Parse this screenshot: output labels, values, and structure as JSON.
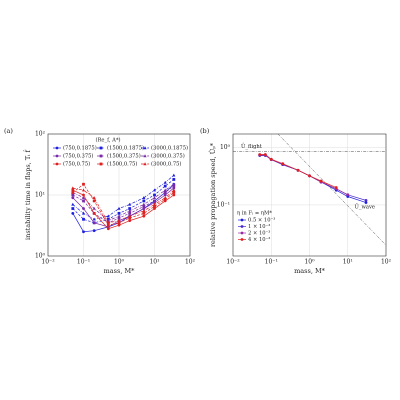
{
  "chart_data": [
    {
      "type": "line",
      "panel": "(a)",
      "xlabel": "mass, M*",
      "ylabel": "instability time in flaps, Tᵢ f̂",
      "xscale": "log",
      "yscale": "log",
      "grid": true,
      "xlim": [
        0.01,
        100
      ],
      "ylim": [
        1,
        100
      ],
      "xticks": [
        {
          "value": 0.01,
          "label": "10⁻²"
        },
        {
          "value": 0.1,
          "label": "10⁻¹"
        },
        {
          "value": 1,
          "label": "10⁰"
        },
        {
          "value": 10,
          "label": "10¹"
        },
        {
          "value": 100,
          "label": "10²"
        }
      ],
      "yticks": [
        {
          "value": 1,
          "label": "10⁰"
        },
        {
          "value": 10,
          "label": "10¹"
        },
        {
          "value": 100,
          "label": "10²"
        }
      ],
      "legend_title": "(Re_f, A*)",
      "x": [
        0.05,
        0.1,
        0.2,
        0.5,
        1,
        2,
        5,
        10,
        20,
        35
      ],
      "series": [
        {
          "name": "(750,0.1875)",
          "color": "#1f1fe0",
          "marker": "circle",
          "linestyle": "solid",
          "values": [
            5,
            2.5,
            2.6,
            3,
            3.5,
            4.5,
            6,
            8,
            11,
            15
          ]
        },
        {
          "name": "(1500,0.1875)",
          "color": "#1f1fe0",
          "marker": "square",
          "linestyle": "dashed",
          "values": [
            6,
            4,
            3.5,
            4,
            5,
            6,
            8,
            10,
            14,
            18
          ]
        },
        {
          "name": "(3000,0.1875)",
          "color": "#1f1fe0",
          "marker": "triangle",
          "linestyle": "dashdot",
          "values": [
            7,
            5,
            4,
            4.5,
            6,
            7,
            9,
            12,
            16,
            21
          ]
        },
        {
          "name": "(750,0.375)",
          "color": "#7a2aa8",
          "marker": "circle",
          "linestyle": "solid",
          "values": [
            9,
            6,
            3.5,
            3,
            3.8,
            4.5,
            6,
            7.5,
            10,
            13
          ]
        },
        {
          "name": "(1500,0.375)",
          "color": "#7a2aa8",
          "marker": "square",
          "linestyle": "dashed",
          "values": [
            10,
            8,
            5,
            3.5,
            4.2,
            5,
            6.5,
            8,
            11,
            14
          ]
        },
        {
          "name": "(3000,0.375)",
          "color": "#7a2aa8",
          "marker": "triangle",
          "linestyle": "dashdot",
          "values": [
            11,
            9,
            6,
            3.8,
            4.5,
            5.5,
            7,
            9,
            12,
            15
          ]
        },
        {
          "name": "(750,0.75)",
          "color": "#e02020",
          "marker": "circle",
          "linestyle": "solid",
          "values": [
            12,
            10,
            5,
            2.8,
            3.2,
            3.8,
            4.5,
            6,
            8,
            10
          ]
        },
        {
          "name": "(1500,0.75)",
          "color": "#e02020",
          "marker": "square",
          "linestyle": "dashed",
          "values": [
            11,
            15,
            8,
            3.2,
            3.5,
            4.2,
            5,
            6.5,
            8.5,
            11
          ]
        },
        {
          "name": "(3000,0.75)",
          "color": "#e02020",
          "marker": "triangle",
          "linestyle": "dashdot",
          "values": [
            13,
            12,
            9,
            3.5,
            3.8,
            4.5,
            5.5,
            7,
            9,
            12
          ]
        }
      ]
    },
    {
      "type": "line",
      "panel": "(b)",
      "xlabel": "mass, M*",
      "ylabel": "relative propagation speed, Ûₚ*",
      "xscale": "log",
      "yscale": "log",
      "grid": true,
      "xlim": [
        0.01,
        100
      ],
      "ylim": [
        0.013,
        1.7
      ],
      "xticks": [
        {
          "value": 0.01,
          "label": "10⁻²"
        },
        {
          "value": 0.1,
          "label": "10⁻¹"
        },
        {
          "value": 1,
          "label": "10⁰"
        },
        {
          "value": 10,
          "label": "10¹"
        },
        {
          "value": 100,
          "label": "10²"
        }
      ],
      "yticks": [
        {
          "value": 0.1,
          "label": "10⁻¹"
        },
        {
          "value": 1,
          "label": "10⁰"
        }
      ],
      "legend_title": "η in Fₗ = ηM*",
      "x": [
        0.05,
        0.07,
        0.1,
        0.2,
        0.5,
        1,
        2,
        5,
        10,
        30
      ],
      "series": [
        {
          "name": "0.5 × 10⁻³",
          "color": "#1f1fe0",
          "marker": "circle",
          "linestyle": "solid",
          "values": [
            0.72,
            0.72,
            0.62,
            0.5,
            0.4,
            0.32,
            0.25,
            0.18,
            0.14,
            0.11
          ]
        },
        {
          "name": "1 × 10⁻³",
          "color": "#4a2ad0",
          "marker": "circle",
          "linestyle": "solid",
          "values": [
            0.73,
            0.73,
            0.61,
            0.5,
            0.4,
            0.32,
            0.25,
            0.19,
            0.15,
            0.12
          ]
        },
        {
          "name": "2 × 10⁻³",
          "color": "#9a2aa0",
          "marker": "circle",
          "linestyle": "solid",
          "values": [
            0.74,
            0.74,
            0.61,
            0.51,
            0.4,
            0.32,
            0.25,
            0.19,
            0.15,
            null
          ]
        },
        {
          "name": "4 × 10⁻³",
          "color": "#e02020",
          "marker": "circle",
          "linestyle": "solid",
          "values": [
            0.75,
            0.75,
            0.62,
            0.52,
            0.4,
            0.32,
            0.26,
            0.2,
            null,
            null
          ]
        }
      ],
      "reference_lines": [
        {
          "label": "Û_flight",
          "linestyle": "dashdot",
          "x": [
            0.01,
            100
          ],
          "y": [
            0.85,
            0.85
          ]
        },
        {
          "label": "Û_wave",
          "linestyle": "dashdot",
          "x": [
            0.15,
            100
          ],
          "y": [
            1.7,
            0.02
          ]
        }
      ]
    }
  ]
}
